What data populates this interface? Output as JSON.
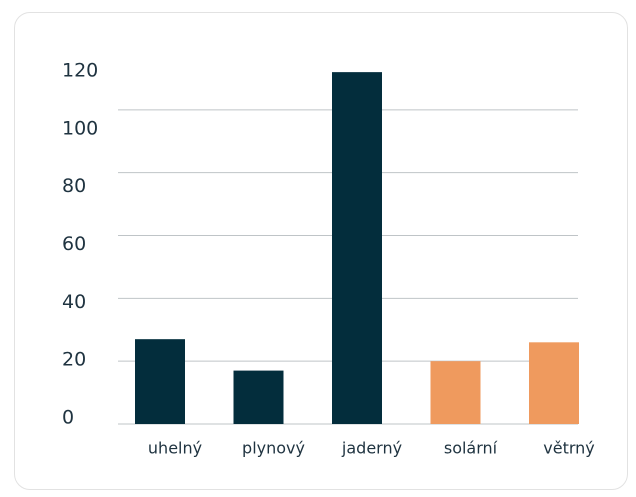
{
  "chart_data": {
    "type": "bar",
    "categories": [
      "uhelný",
      "plynový",
      "jaderný",
      "solární",
      "větrný"
    ],
    "values": [
      27,
      17,
      112,
      20,
      26
    ],
    "colors": [
      "#032d3c",
      "#032d3c",
      "#032d3c",
      "#ef9a5e",
      "#ef9a5e"
    ],
    "ylim": [
      0,
      120
    ],
    "yticks": [
      0,
      20,
      40,
      60,
      80,
      100,
      120
    ],
    "grid": true
  }
}
